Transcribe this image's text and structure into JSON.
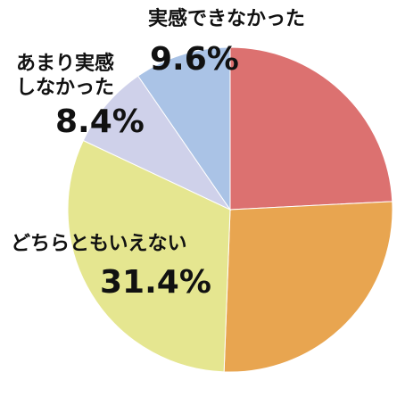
{
  "chart_data": {
    "type": "pie",
    "categories": [
      null,
      null,
      "どちらともいえない",
      "あまり実感しなかった",
      "実感できなかった"
    ],
    "values": [
      24.2,
      26.4,
      31.4,
      8.4,
      9.6
    ],
    "value_labels": [
      null,
      null,
      "31.4%",
      "8.4%",
      "9.6%"
    ],
    "colors": [
      "#dc7170",
      "#e8a550",
      "#e5e690",
      "#cfd1ea",
      "#aac3e6"
    ]
  }
}
